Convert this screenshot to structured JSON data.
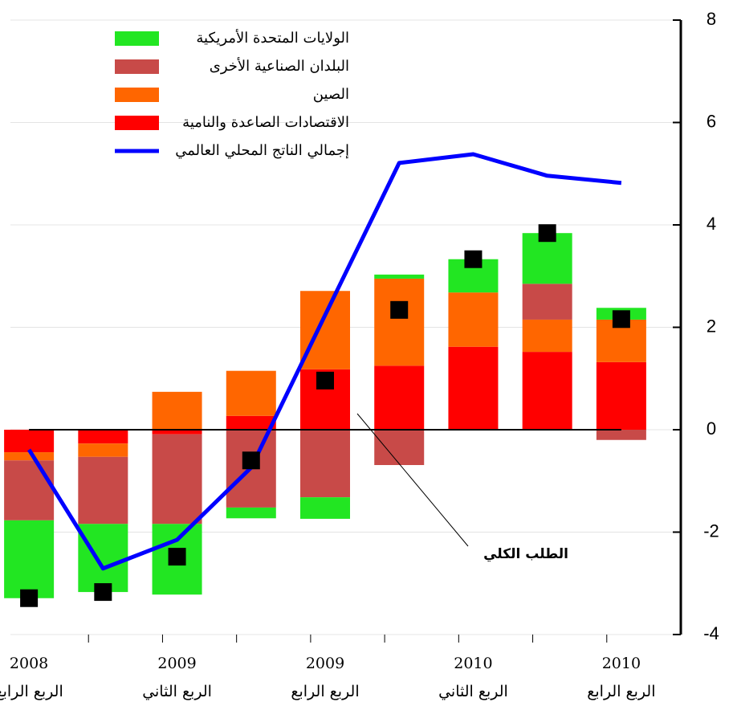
{
  "chart_data": {
    "type": "bar",
    "categories": [
      "2008",
      null,
      "2009",
      null,
      "2009",
      null,
      "2010",
      null,
      "2010"
    ],
    "category_sublabels": [
      "الربع الرابع",
      null,
      "الربع الثاني",
      null,
      "الربع الرابع",
      null,
      "الربع الثاني",
      null,
      "الربع الرابع"
    ],
    "series": [
      {
        "name": "الاقتصادات الصاعدة والنامية",
        "color": "#ff0000",
        "values": [
          -0.44,
          -0.27,
          -0.09,
          0.27,
          1.18,
          1.25,
          1.62,
          1.52,
          1.32
        ]
      },
      {
        "name": "الصين",
        "color": "#ff6600",
        "values": [
          -0.16,
          -0.26,
          0.74,
          0.88,
          1.53,
          1.7,
          1.06,
          0.63,
          0.83
        ]
      },
      {
        "name": "البلدان الصناعية الأخرى",
        "color": "#c84a48",
        "values": [
          -1.17,
          -1.31,
          -1.75,
          -1.52,
          -1.32,
          -0.69,
          0,
          0.7,
          -0.2
        ]
      },
      {
        "name": "الولايات المتحدة الأمريكية",
        "color": "#22e622",
        "values": [
          -1.52,
          -1.33,
          -1.38,
          -0.21,
          -0.42,
          0.08,
          0.65,
          0.99,
          0.23
        ]
      },
      {
        "name": "إجمالي الناتج المحلي العالمي",
        "color": "#0000ff",
        "type": "line",
        "values": [
          -0.39,
          -2.71,
          -2.15,
          -0.74,
          2.24,
          5.21,
          5.38,
          4.96,
          4.82
        ]
      }
    ],
    "total_demand": {
      "name": "الطلب الكلي",
      "color": "#000000",
      "values": [
        -3.29,
        -3.17,
        -2.48,
        -0.6,
        0.96,
        2.34,
        3.33,
        3.84,
        2.16
      ]
    },
    "ylim": [
      -4,
      8
    ],
    "yticks": [
      8,
      6,
      4,
      2,
      0,
      -2,
      -4
    ],
    "grid": true,
    "legend": "upper left"
  }
}
